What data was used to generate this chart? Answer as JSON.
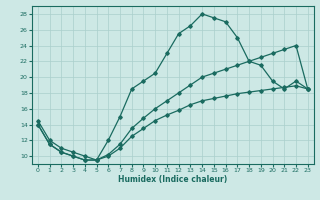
{
  "xlabel": "Humidex (Indice chaleur)",
  "xlim": [
    -0.5,
    23.5
  ],
  "ylim": [
    9,
    29
  ],
  "yticks": [
    10,
    12,
    14,
    16,
    18,
    20,
    22,
    24,
    26,
    28
  ],
  "xticks": [
    0,
    1,
    2,
    3,
    4,
    5,
    6,
    7,
    8,
    9,
    10,
    11,
    12,
    13,
    14,
    15,
    16,
    17,
    18,
    19,
    20,
    21,
    22,
    23
  ],
  "bg_color": "#cde8e5",
  "line_color": "#1a6b60",
  "grid_color": "#aacfcc",
  "line1_x": [
    0,
    1,
    2,
    3,
    4,
    5,
    6,
    7,
    8,
    9,
    10,
    11,
    12,
    13,
    14,
    15,
    16,
    17,
    18,
    19,
    20,
    21,
    22,
    23
  ],
  "line1_y": [
    14.5,
    12,
    11,
    10.5,
    10,
    9.5,
    12,
    15,
    18.5,
    19.5,
    20.5,
    23.0,
    25.5,
    26.5,
    28.0,
    27.5,
    27.0,
    25.0,
    22.0,
    21.5,
    19.5,
    18.5,
    19.5,
    18.5
  ],
  "line2_x": [
    0,
    1,
    2,
    3,
    4,
    5,
    6,
    7,
    8,
    9,
    10,
    11,
    12,
    13,
    14,
    15,
    16,
    17,
    18,
    19,
    20,
    21,
    22,
    23
  ],
  "line2_y": [
    14.0,
    11.5,
    10.5,
    10.0,
    9.5,
    9.5,
    10.0,
    11.0,
    12.5,
    13.5,
    14.5,
    15.2,
    15.8,
    16.5,
    17.0,
    17.3,
    17.6,
    17.9,
    18.1,
    18.3,
    18.5,
    18.7,
    18.9,
    18.5
  ],
  "line3_x": [
    0,
    1,
    2,
    3,
    4,
    5,
    6,
    7,
    8,
    9,
    10,
    11,
    12,
    13,
    14,
    15,
    16,
    17,
    18,
    19,
    20,
    21,
    22,
    23
  ],
  "line3_y": [
    14.0,
    11.5,
    10.5,
    10.0,
    9.5,
    9.5,
    10.2,
    11.5,
    13.5,
    14.8,
    16.0,
    17.0,
    18.0,
    19.0,
    20.0,
    20.5,
    21.0,
    21.5,
    22.0,
    22.5,
    23.0,
    23.5,
    24.0,
    18.5
  ]
}
